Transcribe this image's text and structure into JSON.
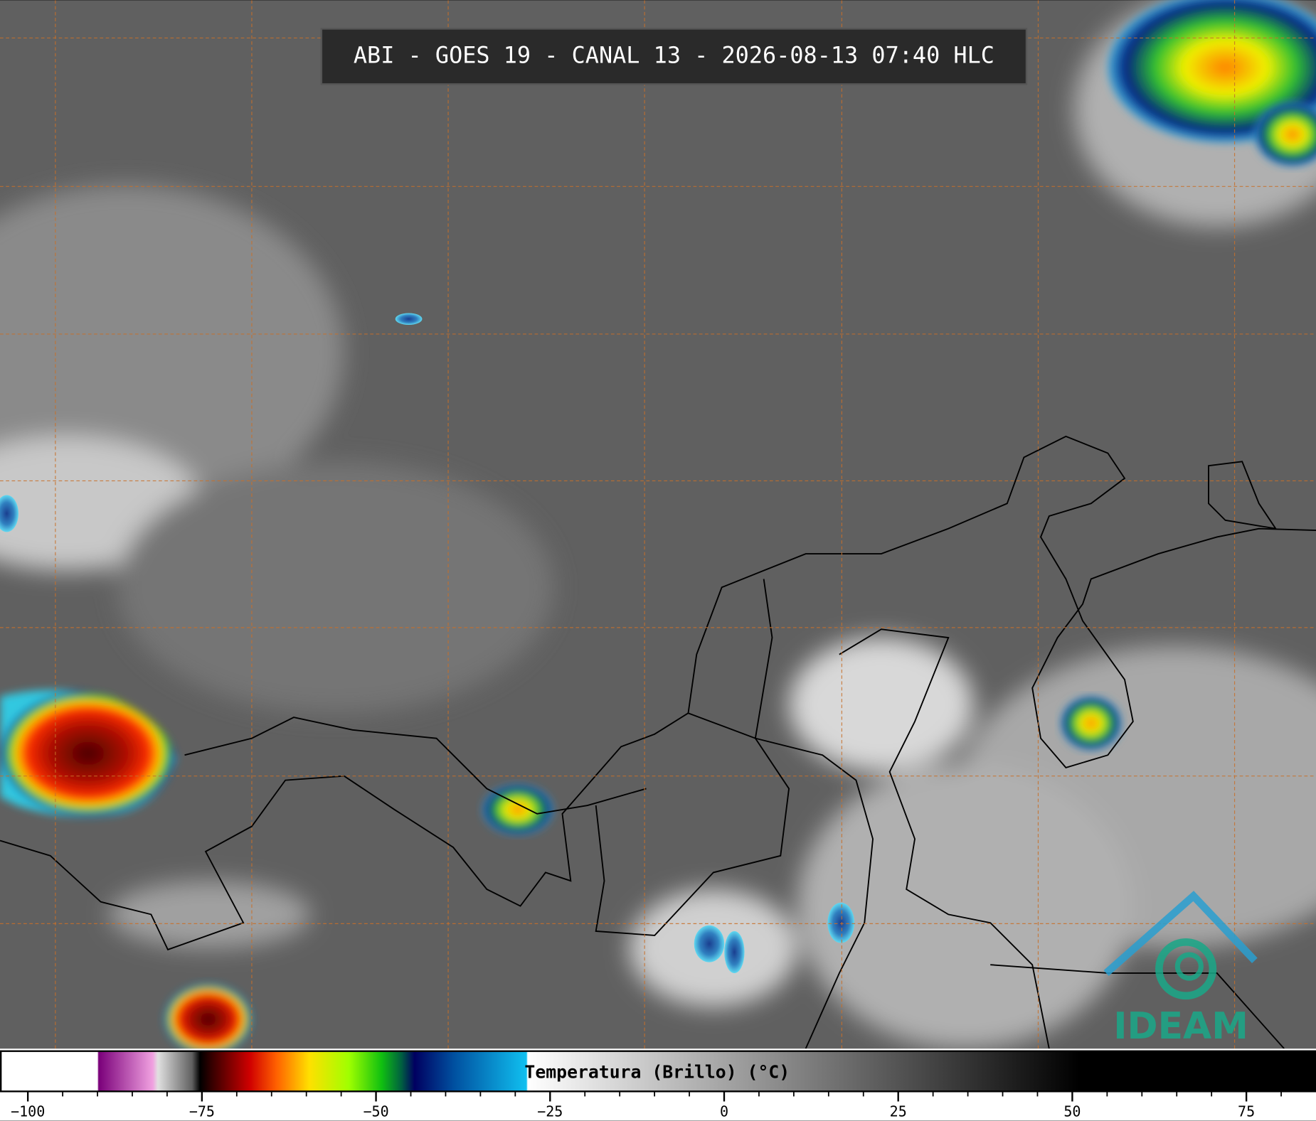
{
  "title": "ABI - GOES 19 - CANAL 13 - 2026-08-13 07:40 HLC",
  "colorbar": {
    "label": "Temperatura (Brillo) (°C)",
    "lim": [
      -104,
      85
    ],
    "ticks": [
      {
        "value": -100,
        "label": "−100"
      },
      {
        "value": -75,
        "label": "−75"
      },
      {
        "value": -50,
        "label": "−50"
      },
      {
        "value": -25,
        "label": "−25"
      },
      0,
      25,
      50,
      75
    ]
  },
  "logo": "IDEAM"
}
